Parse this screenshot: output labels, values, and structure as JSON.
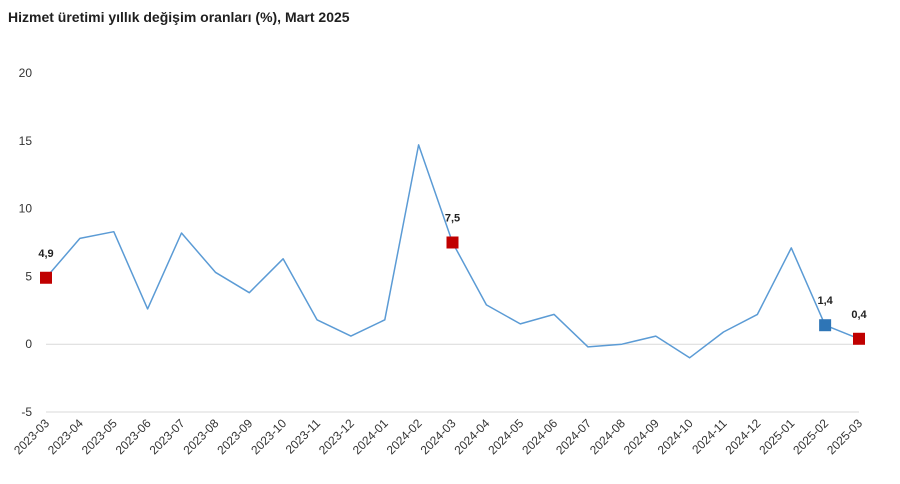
{
  "chart_data": {
    "type": "line",
    "title": "Hizmet üretimi yıllık değişim oranları (%), Mart 2025",
    "xlabel": "",
    "ylabel": "",
    "ylim": [
      -5,
      20
    ],
    "yticks": [
      -5,
      0,
      5,
      10,
      15,
      20
    ],
    "grid": false,
    "legend": "none",
    "line_color": "#5b9bd5",
    "categories": [
      "2023-03",
      "2023-04",
      "2023-05",
      "2023-06",
      "2023-07",
      "2023-08",
      "2023-09",
      "2023-10",
      "2023-11",
      "2023-12",
      "2024-01",
      "2024-02",
      "2024-03",
      "2024-04",
      "2024-05",
      "2024-06",
      "2024-07",
      "2024-08",
      "2024-09",
      "2024-10",
      "2024-11",
      "2024-12",
      "2025-01",
      "2025-02",
      "2025-03"
    ],
    "series": [
      {
        "values": [
          4.9,
          7.8,
          8.3,
          2.6,
          8.2,
          5.3,
          3.8,
          6.3,
          1.8,
          0.6,
          1.8,
          14.7,
          7.5,
          2.9,
          1.5,
          2.2,
          -0.2,
          0.0,
          0.6,
          -1.0,
          0.9,
          2.2,
          7.1,
          1.4,
          0.4
        ]
      }
    ],
    "annotations": [
      {
        "category": "2023-03",
        "value": 4.9,
        "label": "4,9",
        "color": "#c00000"
      },
      {
        "category": "2024-03",
        "value": 7.5,
        "label": "7,5",
        "color": "#c00000"
      },
      {
        "category": "2025-02",
        "value": 1.4,
        "label": "1,4",
        "color": "#2e75b6"
      },
      {
        "category": "2025-03",
        "value": 0.4,
        "label": "0,4",
        "color": "#c00000"
      }
    ]
  }
}
